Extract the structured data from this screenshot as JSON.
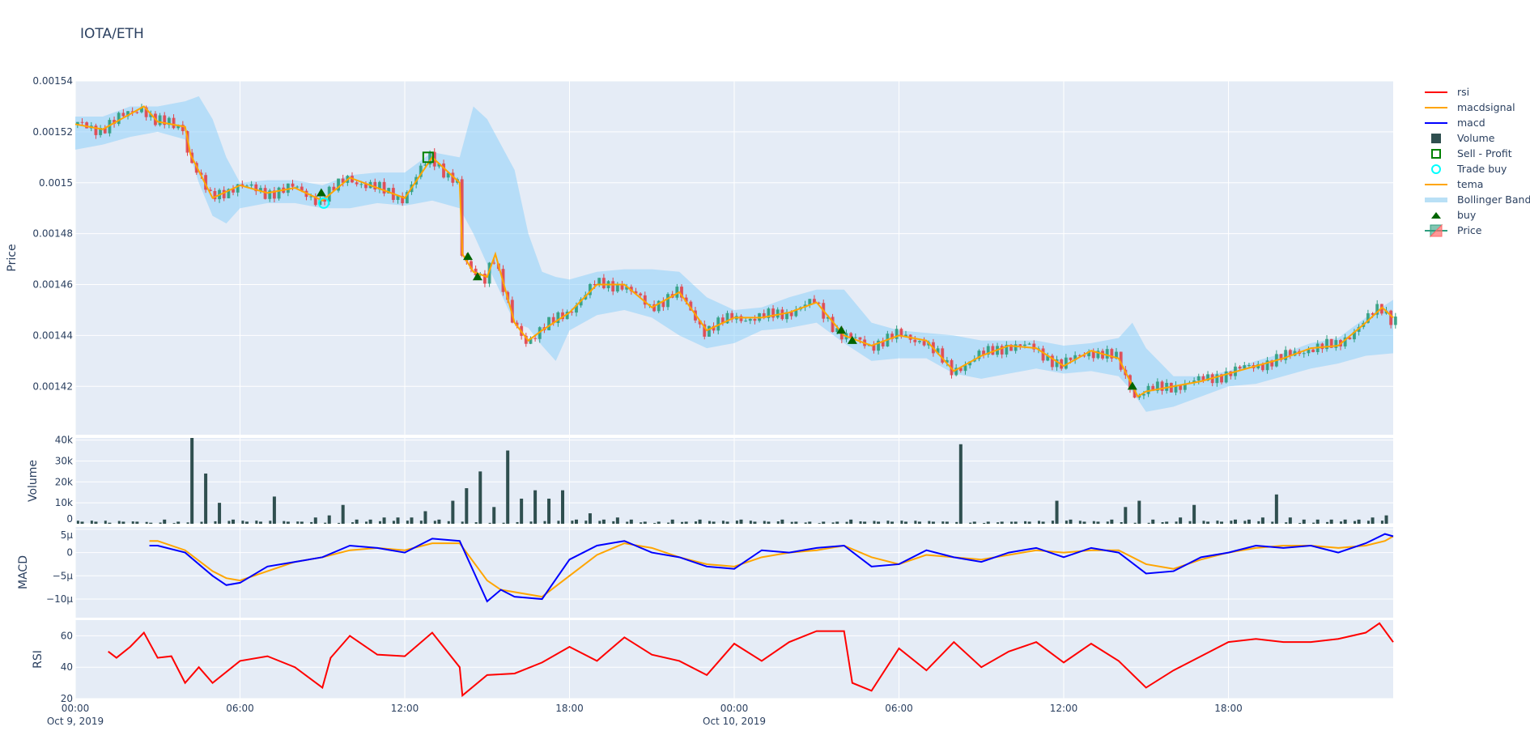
{
  "title": "IOTA/ETH",
  "legend": [
    {
      "name": "rsi",
      "color": "#ff0000",
      "symbol": "line"
    },
    {
      "name": "macdsignal",
      "color": "#ffa500",
      "symbol": "line"
    },
    {
      "name": "macd",
      "color": "#0000ff",
      "symbol": "line"
    },
    {
      "name": "Volume",
      "color": "#2f4f4f",
      "symbol": "square"
    },
    {
      "name": "Sell - Profit",
      "color": "#008000",
      "symbol": "square-open"
    },
    {
      "name": "Trade buy",
      "color": "#00ffff",
      "symbol": "circle-open"
    },
    {
      "name": "tema",
      "color": "#ffa500",
      "symbol": "line"
    },
    {
      "name": "Bollinger Band",
      "color": "#b9e0f6",
      "symbol": "band"
    },
    {
      "name": "buy",
      "color": "#006400",
      "symbol": "triangle-up"
    },
    {
      "name": "Price",
      "color": "#2e9e7f",
      "symbol": "candlestick"
    }
  ],
  "chart_data": [
    {
      "type": "candlestick",
      "panel": "price",
      "ylabel": "Price",
      "ylim": [
        0.001401,
        0.00154
      ],
      "yticks": [
        "0.00154",
        "0.00152",
        "0.0015",
        "0.00148",
        "0.00146",
        "0.00144",
        "0.00142"
      ],
      "ytick_values": [
        0.00154,
        0.00152,
        0.0015,
        0.00148,
        0.00146,
        0.00144,
        0.00142
      ],
      "x_hours_since": "Oct 9, 2019 00:00",
      "x": [
        0,
        1,
        2,
        2.5,
        3,
        4,
        4.2,
        5,
        6,
        7,
        8,
        9,
        10,
        11,
        12,
        13,
        14,
        14.1,
        14.5,
        15,
        15.3,
        16,
        16.5,
        17,
        18,
        19,
        20,
        21,
        22,
        23,
        24,
        25,
        26,
        27,
        28,
        29,
        30,
        31,
        32,
        33,
        34,
        35,
        36,
        37,
        38,
        38.7,
        39,
        40,
        41,
        42,
        43,
        44,
        45,
        46,
        47,
        47.6,
        48
      ],
      "close": [
        0.001523,
        0.001521,
        0.001527,
        0.00153,
        0.001524,
        0.001522,
        0.001511,
        0.001494,
        0.001499,
        0.001496,
        0.001498,
        0.001493,
        0.001502,
        0.001498,
        0.001494,
        0.00151,
        0.0015,
        0.001472,
        0.001465,
        0.001463,
        0.001472,
        0.001445,
        0.001438,
        0.001442,
        0.001449,
        0.00146,
        0.00146,
        0.001451,
        0.001457,
        0.001442,
        0.001447,
        0.001447,
        0.001449,
        0.001453,
        0.00144,
        0.001436,
        0.00144,
        0.001438,
        0.001426,
        0.001432,
        0.001436,
        0.001435,
        0.001428,
        0.001434,
        0.001431,
        0.001416,
        0.001418,
        0.00142,
        0.001422,
        0.001425,
        0.001428,
        0.001431,
        0.001435,
        0.001436,
        0.001445,
        0.001451,
        0.001447
      ],
      "bb_x": [
        0,
        1,
        2,
        3,
        4,
        4.5,
        5,
        5.5,
        6,
        7,
        8,
        9,
        10,
        11,
        12,
        13,
        14,
        14.5,
        15,
        16,
        16.5,
        17,
        17.5,
        18,
        19,
        20,
        21,
        22,
        23,
        24,
        25,
        26,
        27,
        28,
        29,
        30,
        31,
        32,
        33,
        34,
        35,
        36,
        37,
        38,
        38.5,
        39,
        40,
        41,
        42,
        43,
        44,
        45,
        46,
        47,
        48
      ],
      "bb_upper": [
        0.001526,
        0.001526,
        0.00153,
        0.00153,
        0.001532,
        0.001534,
        0.001525,
        0.00151,
        0.0015,
        0.001501,
        0.001501,
        0.001499,
        0.001503,
        0.001504,
        0.001504,
        0.001512,
        0.00151,
        0.00153,
        0.001525,
        0.001505,
        0.00148,
        0.001465,
        0.001463,
        0.001462,
        0.001465,
        0.001466,
        0.001466,
        0.001465,
        0.001455,
        0.00145,
        0.001451,
        0.001455,
        0.001458,
        0.001458,
        0.001445,
        0.001442,
        0.001441,
        0.00144,
        0.001438,
        0.001438,
        0.001438,
        0.001436,
        0.001437,
        0.001439,
        0.001445,
        0.001435,
        0.001424,
        0.001424,
        0.001426,
        0.00143,
        0.001433,
        0.001437,
        0.001439,
        0.001447,
        0.001454
      ],
      "bb_lower": [
        0.001513,
        0.001515,
        0.001518,
        0.00152,
        0.001517,
        0.0015,
        0.001487,
        0.001484,
        0.00149,
        0.001492,
        0.001492,
        0.00149,
        0.00149,
        0.001492,
        0.001491,
        0.001493,
        0.00149,
        0.00148,
        0.001468,
        0.001445,
        0.001443,
        0.001436,
        0.00143,
        0.001442,
        0.001448,
        0.00145,
        0.001447,
        0.00144,
        0.001435,
        0.001437,
        0.001442,
        0.001443,
        0.001445,
        0.001437,
        0.00143,
        0.001431,
        0.001431,
        0.001425,
        0.001423,
        0.001425,
        0.001427,
        0.001425,
        0.001426,
        0.001424,
        0.001418,
        0.00141,
        0.001412,
        0.001416,
        0.00142,
        0.001421,
        0.001424,
        0.001427,
        0.001429,
        0.001432,
        0.001433
      ],
      "buy_markers": [
        [
          8.96,
          0.001495
        ],
        [
          14.3,
          0.00147
        ],
        [
          14.65,
          0.001462
        ],
        [
          27.9,
          0.001441
        ],
        [
          28.3,
          0.001437
        ],
        [
          38.5,
          0.001419
        ]
      ],
      "trade_buy": [
        [
          9.05,
          0.001492
        ]
      ],
      "sell_profit": [
        [
          12.85,
          0.00151
        ]
      ]
    },
    {
      "type": "bar",
      "panel": "volume",
      "ylabel": "Volume",
      "ylim": [
        0,
        41000
      ],
      "yticks": [
        "0",
        "10k",
        "20k",
        "30k",
        "40k"
      ],
      "ytick_values": [
        0,
        10000,
        20000,
        30000,
        40000
      ],
      "x_step_hours": 0.5,
      "values": [
        1000,
        1000,
        500,
        1000,
        1000,
        500,
        2000,
        1000,
        41000,
        24000,
        10000,
        2000,
        1000,
        1000,
        13000,
        1000,
        1000,
        3000,
        4000,
        9000,
        2000,
        2000,
        3000,
        3000,
        3000,
        6000,
        2000,
        11000,
        17000,
        25000,
        8000,
        35000,
        12000,
        16000,
        12000,
        16000,
        2000,
        5000,
        2000,
        3000,
        2000,
        1000,
        1000,
        2000,
        1000,
        2000,
        1000,
        1000,
        2000,
        1000,
        1000,
        2000,
        1000,
        1000,
        1000,
        1000,
        2000,
        1000,
        1000,
        1000,
        1000,
        1000,
        1000,
        1000,
        38000,
        1000,
        1000,
        1000,
        1000,
        1000,
        1000,
        11000,
        2000,
        1000,
        1000,
        2000,
        8000,
        11000,
        2000,
        1000,
        3000,
        9000,
        1000,
        1000,
        2000,
        2000,
        3000,
        14000,
        3000,
        2000,
        2000,
        2000,
        2000,
        2000,
        3000,
        4000
      ]
    },
    {
      "type": "line",
      "panel": "macd",
      "ylabel": "MACD",
      "ylim": [
        -14,
        5.5
      ],
      "yticks": [
        "5µ",
        "0",
        "−5µ",
        "−10µ"
      ],
      "ytick_values": [
        5,
        0,
        -5,
        -10
      ],
      "unit": "µ",
      "x": [
        2.7,
        3,
        4,
        5,
        5.5,
        6,
        7,
        8,
        9,
        10,
        11,
        12,
        13,
        14,
        15,
        15.5,
        16,
        17,
        18,
        19,
        20,
        21,
        22,
        23,
        24,
        25,
        26,
        27,
        28,
        29,
        30,
        31,
        32,
        33,
        34,
        35,
        36,
        37,
        38,
        39,
        40,
        41,
        42,
        43,
        44,
        45,
        46,
        47,
        47.7,
        48
      ],
      "series": [
        {
          "name": "macd",
          "color": "#0000ff",
          "values": [
            1.5,
            1.5,
            0,
            -5,
            -7,
            -6.5,
            -3,
            -2,
            -1,
            1.5,
            1,
            0,
            3,
            2.5,
            -10.5,
            -8,
            -9.5,
            -10,
            -1.5,
            1.5,
            2.5,
            0,
            -1,
            -3,
            -3.5,
            0.5,
            0,
            1,
            1.5,
            -3,
            -2.5,
            0.5,
            -1,
            -2,
            0,
            1,
            -1,
            1,
            0,
            -4.5,
            -4,
            -1,
            0,
            1.5,
            1,
            1.5,
            0,
            2,
            4,
            3.5
          ]
        },
        {
          "name": "macdsignal",
          "color": "#ffa500",
          "values": [
            2.5,
            2.5,
            0.5,
            -4,
            -5.5,
            -6,
            -4,
            -2,
            -1,
            0.5,
            1,
            0.5,
            2,
            2,
            -6,
            -8,
            -8.5,
            -9.5,
            -5,
            -0.5,
            2,
            1,
            -1,
            -2.5,
            -3,
            -1,
            0,
            0.5,
            1.5,
            -1,
            -2.5,
            -0.5,
            -1,
            -1.5,
            -0.5,
            0.5,
            0,
            0.5,
            0.5,
            -2.5,
            -3.5,
            -1.5,
            0,
            1,
            1.5,
            1.5,
            1,
            1.5,
            2.5,
            3.5
          ]
        }
      ]
    },
    {
      "type": "line",
      "panel": "rsi",
      "ylabel": "RSI",
      "ylim": [
        20,
        70
      ],
      "yticks": [
        "20",
        "40",
        "60"
      ],
      "ytick_values": [
        20,
        40,
        60
      ],
      "x": [
        1.2,
        1.5,
        2,
        2.5,
        3,
        3.5,
        4,
        4.5,
        5,
        6,
        7,
        8,
        9,
        9.3,
        10,
        11,
        12,
        13,
        14,
        14.1,
        15,
        16,
        17,
        18,
        19,
        20,
        21,
        22,
        23,
        24,
        25,
        26,
        27,
        28,
        28.3,
        29,
        30,
        31,
        32,
        33,
        34,
        35,
        36,
        37,
        38,
        39,
        40,
        41,
        42,
        43,
        44,
        45,
        46,
        47,
        47.5,
        48
      ],
      "series": [
        {
          "name": "rsi",
          "color": "#ff0000",
          "values": [
            50,
            46,
            53,
            62,
            46,
            47,
            30,
            40,
            30,
            44,
            47,
            40,
            27,
            46,
            60,
            48,
            47,
            62,
            40,
            22,
            35,
            36,
            43,
            53,
            44,
            59,
            48,
            44,
            35,
            55,
            44,
            56,
            63,
            63,
            30,
            25,
            52,
            38,
            56,
            40,
            50,
            56,
            43,
            55,
            44,
            27,
            38,
            47,
            56,
            58,
            56,
            56,
            58,
            62,
            68,
            56
          ]
        }
      ]
    }
  ],
  "x_axis": {
    "ticks": [
      "00:00",
      "06:00",
      "12:00",
      "18:00",
      "00:00",
      "06:00",
      "12:00",
      "18:00"
    ],
    "tick_hours": [
      0,
      6,
      12,
      18,
      24,
      30,
      36,
      42
    ],
    "dates": [
      {
        "hour": 0,
        "label": "Oct 9, 2019"
      },
      {
        "hour": 24,
        "label": "Oct 10, 2019"
      }
    ],
    "range_hours": [
      0,
      48
    ]
  }
}
